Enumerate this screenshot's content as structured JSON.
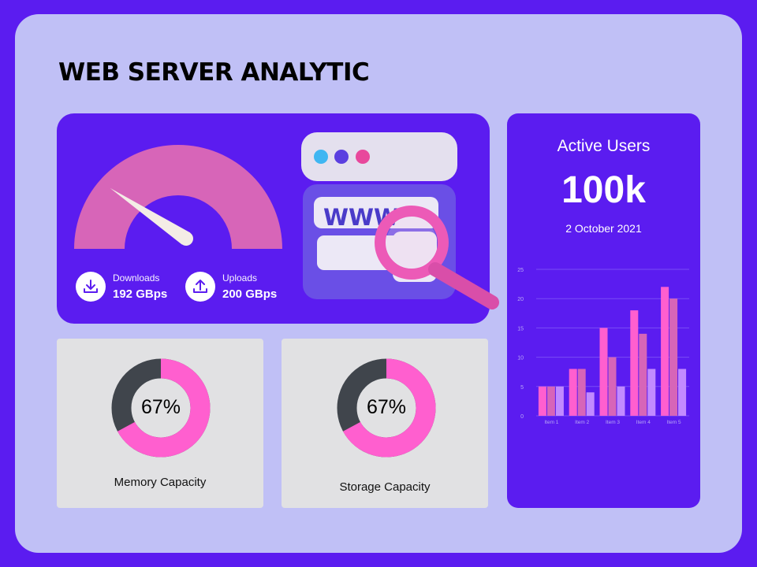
{
  "title": "WEB SERVER ANALYTIC",
  "colors": {
    "background": "#5b1cf0",
    "board": "#c0c0f6",
    "pink": "#ff5fcf",
    "dark": "#40454c",
    "gauge": "#d765b8"
  },
  "speed": {
    "gauge_level": 0.3,
    "downloads": {
      "label": "Downloads",
      "value": "192 GBps",
      "icon": "download-icon"
    },
    "uploads": {
      "label": "Uploads",
      "value": "200 GBps",
      "icon": "upload-icon"
    },
    "illustration": {
      "text": "WWW",
      "icon": "magnifier-icon"
    }
  },
  "active_users": {
    "label": "Active Users",
    "value": "100k",
    "date": "2 October 2021"
  },
  "chart_data": {
    "type": "bar",
    "categories": [
      "Item 1",
      "Item 2",
      "Item 3",
      "Item 4",
      "Item 5"
    ],
    "series": [
      {
        "values": [
          5,
          8,
          15,
          18,
          22
        ],
        "color": "#ff5fcf"
      },
      {
        "values": [
          5,
          8,
          10,
          14,
          20
        ],
        "color": "#d765b8"
      },
      {
        "values": [
          5,
          4,
          5,
          8,
          8
        ],
        "color": "#c28bff"
      }
    ],
    "yticks": [
      "0",
      "5",
      "10",
      "15",
      "20",
      "25"
    ],
    "ylim": [
      0,
      25
    ],
    "grid": true
  },
  "memory": {
    "percent_label": "67%",
    "fraction": 0.67,
    "label": "Memory Capacity"
  },
  "storage": {
    "percent_label": "67%",
    "fraction": 0.67,
    "label": "Storage Capacity"
  }
}
